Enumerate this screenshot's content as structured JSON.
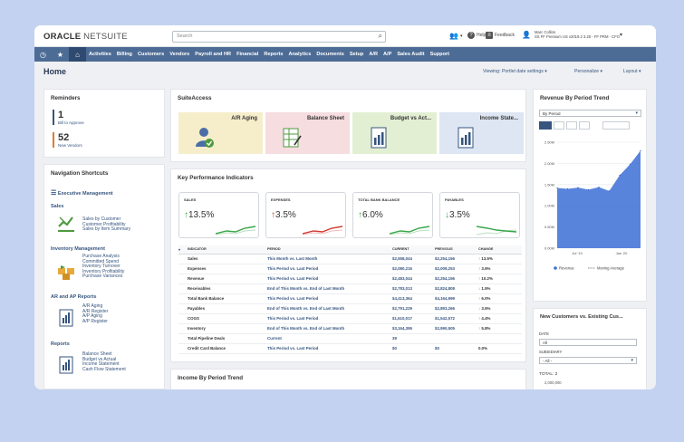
{
  "brand": {
    "oracle": "ORACLE",
    "netsuite": "NETSUITE"
  },
  "search": {
    "placeholder": "Search"
  },
  "topbar": {
    "help": "Help",
    "feedback": "Feedback",
    "user_name": "Marc Collins",
    "user_role": "SS FF Premium US v2019.2 3.25 - FF PRM - CFO"
  },
  "nav": {
    "items": [
      "Activities",
      "Billing",
      "Customers",
      "Vendors",
      "Payroll and HR",
      "Financial",
      "Reports",
      "Analytics",
      "Documents",
      "Setup",
      "A/R",
      "A/P",
      "Sales Audit",
      "Support"
    ]
  },
  "page": {
    "title": "Home",
    "viewing": "Viewing: Portlet date settings",
    "personalize": "Personalize",
    "layout": "Layout"
  },
  "reminders": {
    "title": "Reminders",
    "items": [
      {
        "count": "1",
        "label": "Bill to Approve",
        "color": "#36557f"
      },
      {
        "count": "52",
        "label": "New Vendors",
        "color": "#e07b2a"
      }
    ]
  },
  "shortcuts": {
    "title": "Navigation Shortcuts",
    "exec": "Executive Management",
    "sales": {
      "title": "Sales",
      "links": [
        "Sales by Customer",
        "Customer Profitability",
        "Sales by Item Summary"
      ]
    },
    "inventory": {
      "title": "Inventory Management",
      "links": [
        "Purchase Analysis",
        "Committed Spend",
        "Inventory Turnover",
        "Inventory Profitability",
        "Purchase Variances"
      ]
    },
    "arap": {
      "title": "AR and AP Reports",
      "links": [
        "A/R Aging",
        "A/R Register",
        "A/P Aging",
        "A/P Register"
      ]
    },
    "reports": {
      "title": "Reports",
      "links": [
        "Balance Sheet",
        "Budget vs Actual",
        "Income Statement",
        "Cash Flow Statement"
      ]
    }
  },
  "suiteaccess": {
    "title": "SuiteAccess",
    "tiles": [
      {
        "label": "A/R Aging",
        "bg": "#f6eecb",
        "icon": "user-check-icon"
      },
      {
        "label": "Balance Sheet",
        "bg": "#f6dde0",
        "icon": "spreadsheet-icon"
      },
      {
        "label": "Budget vs Act...",
        "bg": "#e3efd3",
        "icon": "document-chart-icon"
      },
      {
        "label": "Income State...",
        "bg": "#dde6f2",
        "icon": "document-chart-icon"
      }
    ]
  },
  "kpi": {
    "title": "Key Performance Indicators",
    "tiles": [
      {
        "label": "SALES",
        "value": "13.5%",
        "dir": "up",
        "color": "#3aa64a"
      },
      {
        "label": "EXPENSES",
        "value": "3.5%",
        "dir": "up",
        "color": "#d23b35"
      },
      {
        "label": "TOTAL BANK BALANCE",
        "value": "6.0%",
        "dir": "up",
        "color": "#3aa64a"
      },
      {
        "label": "PAYABLES",
        "value": "3.5%",
        "dir": "down",
        "color": "#3aa64a"
      }
    ],
    "headers": [
      "INDICATOR",
      "PERIOD",
      "CURRENT",
      "PREVIOUS",
      "CHANGE"
    ],
    "rows": [
      {
        "indicator": "Sales",
        "period": "This Month vs. Last Month",
        "current": "$2,558,044",
        "previous": "$2,254,156",
        "change": "13.5%",
        "dir": "up"
      },
      {
        "indicator": "Expenses",
        "period": "This Period vs. Last Period",
        "current": "$2,080,215",
        "previous": "$2,009,253",
        "change": "3.5%",
        "dir": "uprd"
      },
      {
        "indicator": "Revenue",
        "period": "This Period vs. Last Period",
        "current": "$2,483,044",
        "previous": "$2,254,156",
        "change": "10.2%",
        "dir": "up"
      },
      {
        "indicator": "Receivables",
        "period": "End of This Month vs. End of Last Month",
        "current": "$2,783,013",
        "previous": "$2,824,808",
        "change": "1.5%",
        "dir": "dnrd"
      },
      {
        "indicator": "Total Bank Balance",
        "period": "This Period vs. Last Period",
        "current": "$4,413,364",
        "previous": "$4,164,999",
        "change": "6.0%",
        "dir": "up"
      },
      {
        "indicator": "Payables",
        "period": "End of This Month vs. End of Last Month",
        "current": "$2,791,229",
        "previous": "$2,893,266",
        "change": "3.5%",
        "dir": "dn"
      },
      {
        "indicator": "COGS",
        "period": "This Period vs. Last Period",
        "current": "$1,610,017",
        "previous": "$1,542,572",
        "change": "4.4%",
        "dir": "uprd"
      },
      {
        "indicator": "Inventory",
        "period": "End of This Month vs. End of Last Month",
        "current": "$3,164,395",
        "previous": "$2,990,505",
        "change": "5.8%",
        "dir": "up"
      },
      {
        "indicator": "Total Pipeline Deals",
        "period": "Current",
        "current": "39",
        "previous": "",
        "change": "",
        "dir": ""
      },
      {
        "indicator": "Credit Card Balance",
        "period": "This Period vs. Last Period",
        "current": "$0",
        "previous": "$0",
        "change": "0.0%",
        "dir": ""
      }
    ]
  },
  "income_trend": {
    "title": "Income By Period Trend"
  },
  "revenue_trend": {
    "title": "Revenue By Period Trend",
    "select": "By Period"
  },
  "chart_data": {
    "type": "area",
    "x": [
      "Jul '19",
      "Aug '19",
      "Sep '19",
      "Oct '19",
      "Nov '19",
      "Dec '19",
      "Jan '20",
      "Feb '20",
      "Mar '20"
    ],
    "series": [
      {
        "name": "Revenue",
        "values": [
          1.42,
          1.4,
          1.43,
          1.38,
          1.44,
          1.35,
          1.72,
          1.98,
          2.3
        ]
      }
    ],
    "ylim": [
      0,
      2.5
    ],
    "yticks": [
      "0.00M",
      "0.50M",
      "1.00M",
      "1.50M",
      "2.00M",
      "2.50M"
    ],
    "xticks": [
      "Jul '19",
      "Jan '20"
    ],
    "legend": [
      "Revenue",
      "Moving Average"
    ]
  },
  "new_customers": {
    "title": "New Customers vs. Existing Cus...",
    "date_label": "DATE",
    "date_value": "All",
    "subsidiary_label": "SUBSIDIARY",
    "subsidiary_value": "- All -",
    "total": "TOTAL: 2",
    "first_tick": "2,000,000"
  }
}
